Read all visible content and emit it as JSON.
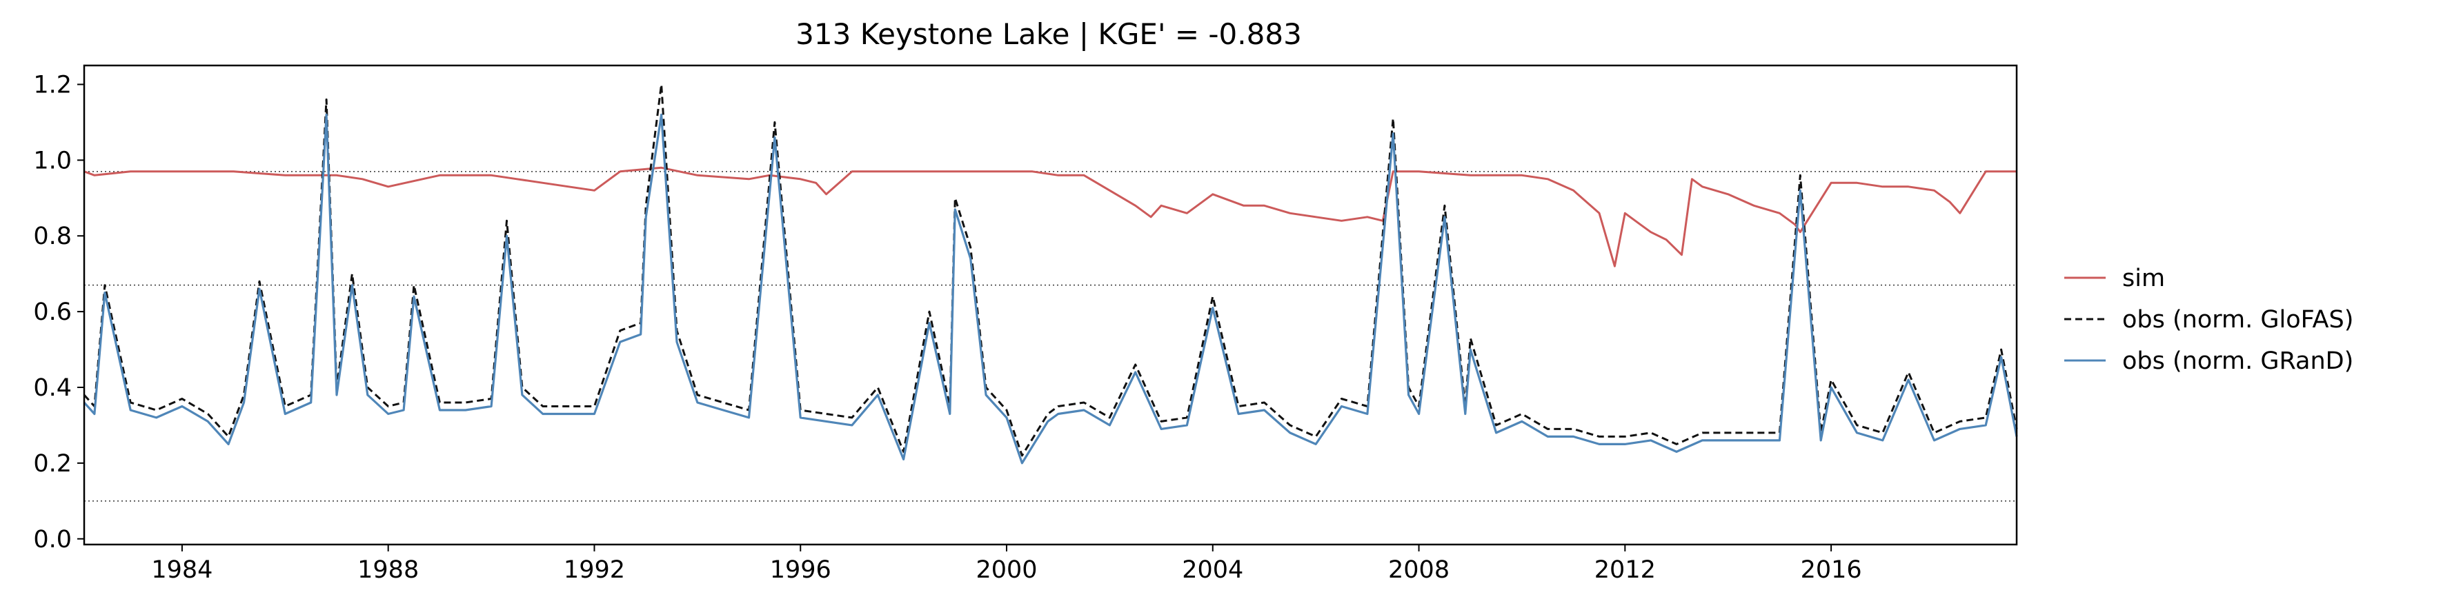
{
  "chart_data": {
    "type": "line",
    "title": "313  Keystone Lake | KGE' = -0.883",
    "xlabel": "",
    "ylabel": "",
    "xlim": [
      1982.1,
      2019.6
    ],
    "ylim": [
      -0.015,
      1.25
    ],
    "x_ticks": [
      1984,
      1988,
      1992,
      1996,
      2000,
      2004,
      2008,
      2012,
      2016
    ],
    "y_ticks": [
      0.0,
      0.2,
      0.4,
      0.6,
      0.8,
      1.0,
      1.2
    ],
    "y_tick_labels": [
      "0.0",
      "0.2",
      "0.4",
      "0.6",
      "0.8",
      "1.0",
      "1.2"
    ],
    "reference_lines": [
      0.97,
      0.67,
      0.1
    ],
    "legend_position": "outside-right",
    "grid": false,
    "series": [
      {
        "name": "sim",
        "color": "#cc5a5a",
        "style": "solid",
        "x": [
          1982.1,
          1982.3,
          1983.0,
          1984.0,
          1985.0,
          1986.0,
          1987.0,
          1987.5,
          1988.0,
          1989.0,
          1990.0,
          1990.5,
          1991.0,
          1991.5,
          1992.0,
          1992.5,
          1993.3,
          1994.0,
          1995.0,
          1995.4,
          1996.0,
          1996.3,
          1996.5,
          1997.0,
          1998.0,
          1999.0,
          2000.0,
          2000.5,
          2001.0,
          2001.5,
          2002.0,
          2002.5,
          2002.8,
          2003.0,
          2003.5,
          2004.0,
          2004.6,
          2005.0,
          2005.5,
          2006.0,
          2006.5,
          2007.0,
          2007.3,
          2007.5,
          2008.0,
          2009.0,
          2010.0,
          2010.5,
          2011.0,
          2011.5,
          2011.8,
          2012.0,
          2012.3,
          2012.5,
          2012.8,
          2013.1,
          2013.3,
          2013.5,
          2014.0,
          2014.5,
          2015.0,
          2015.3,
          2015.4,
          2016.0,
          2016.5,
          2017.0,
          2017.5,
          2018.0,
          2018.3,
          2018.5,
          2019.0,
          2019.6
        ],
        "y": [
          0.97,
          0.96,
          0.97,
          0.97,
          0.97,
          0.96,
          0.96,
          0.95,
          0.93,
          0.96,
          0.96,
          0.95,
          0.94,
          0.93,
          0.92,
          0.97,
          0.98,
          0.96,
          0.95,
          0.96,
          0.95,
          0.94,
          0.91,
          0.97,
          0.97,
          0.97,
          0.97,
          0.97,
          0.96,
          0.96,
          0.92,
          0.88,
          0.85,
          0.88,
          0.86,
          0.91,
          0.88,
          0.88,
          0.86,
          0.85,
          0.84,
          0.85,
          0.84,
          0.97,
          0.97,
          0.96,
          0.96,
          0.95,
          0.92,
          0.86,
          0.72,
          0.86,
          0.83,
          0.81,
          0.79,
          0.75,
          0.95,
          0.93,
          0.91,
          0.88,
          0.86,
          0.83,
          0.81,
          0.94,
          0.94,
          0.93,
          0.93,
          0.92,
          0.89,
          0.86,
          0.97,
          0.97
        ]
      },
      {
        "name": "obs (norm. GloFAS)",
        "color": "#111111",
        "style": "dashed",
        "x": [
          1982.1,
          1982.3,
          1982.5,
          1983.0,
          1983.5,
          1984.0,
          1984.5,
          1984.9,
          1985.2,
          1985.5,
          1986.0,
          1986.5,
          1986.8,
          1987.0,
          1987.3,
          1987.6,
          1988.0,
          1988.3,
          1988.5,
          1989.0,
          1989.5,
          1990.0,
          1990.3,
          1990.6,
          1991.0,
          1991.5,
          1992.0,
          1992.5,
          1992.9,
          1993.0,
          1993.3,
          1993.6,
          1994.0,
          1994.5,
          1995.0,
          1995.5,
          1996.0,
          1996.5,
          1997.0,
          1997.5,
          1998.0,
          1998.5,
          1998.9,
          1999.0,
          1999.3,
          1999.6,
          2000.0,
          2000.3,
          2000.8,
          2001.0,
          2001.5,
          2002.0,
          2002.5,
          2003.0,
          2003.5,
          2004.0,
          2004.5,
          2005.0,
          2005.5,
          2006.0,
          2006.5,
          2007.0,
          2007.5,
          2007.8,
          2008.0,
          2008.5,
          2008.9,
          2009.0,
          2009.5,
          2010.0,
          2010.5,
          2011.0,
          2011.5,
          2012.0,
          2012.5,
          2013.0,
          2013.5,
          2014.0,
          2014.5,
          2015.0,
          2015.4,
          2015.8,
          2016.0,
          2016.5,
          2017.0,
          2017.5,
          2018.0,
          2018.5,
          2019.0,
          2019.3,
          2019.6
        ],
        "y": [
          0.38,
          0.35,
          0.67,
          0.36,
          0.34,
          0.37,
          0.33,
          0.27,
          0.38,
          0.68,
          0.35,
          0.38,
          1.16,
          0.4,
          0.7,
          0.4,
          0.35,
          0.36,
          0.67,
          0.36,
          0.36,
          0.37,
          0.84,
          0.4,
          0.35,
          0.35,
          0.35,
          0.55,
          0.57,
          0.88,
          1.2,
          0.55,
          0.38,
          0.36,
          0.34,
          1.1,
          0.34,
          0.33,
          0.32,
          0.4,
          0.23,
          0.6,
          0.35,
          0.9,
          0.77,
          0.4,
          0.34,
          0.22,
          0.33,
          0.35,
          0.36,
          0.32,
          0.46,
          0.31,
          0.32,
          0.64,
          0.35,
          0.36,
          0.3,
          0.27,
          0.37,
          0.35,
          1.11,
          0.4,
          0.35,
          0.88,
          0.35,
          0.53,
          0.3,
          0.33,
          0.29,
          0.29,
          0.27,
          0.27,
          0.28,
          0.25,
          0.28,
          0.28,
          0.28,
          0.28,
          0.96,
          0.28,
          0.42,
          0.3,
          0.28,
          0.44,
          0.28,
          0.31,
          0.32,
          0.5,
          0.29
        ]
      },
      {
        "name": "obs (norm. GRanD)",
        "color": "#4f86b8",
        "style": "solid",
        "x": [
          1982.1,
          1982.3,
          1982.5,
          1983.0,
          1983.5,
          1984.0,
          1984.5,
          1984.9,
          1985.2,
          1985.5,
          1986.0,
          1986.5,
          1986.8,
          1987.0,
          1987.3,
          1987.6,
          1988.0,
          1988.3,
          1988.5,
          1989.0,
          1989.5,
          1990.0,
          1990.3,
          1990.6,
          1991.0,
          1991.5,
          1992.0,
          1992.5,
          1992.9,
          1993.0,
          1993.3,
          1993.6,
          1994.0,
          1994.5,
          1995.0,
          1995.5,
          1996.0,
          1996.5,
          1997.0,
          1997.5,
          1998.0,
          1998.5,
          1998.9,
          1999.0,
          1999.3,
          1999.6,
          2000.0,
          2000.3,
          2000.8,
          2001.0,
          2001.5,
          2002.0,
          2002.5,
          2003.0,
          2003.5,
          2004.0,
          2004.5,
          2005.0,
          2005.5,
          2006.0,
          2006.5,
          2007.0,
          2007.5,
          2007.8,
          2008.0,
          2008.5,
          2008.9,
          2009.0,
          2009.5,
          2010.0,
          2010.5,
          2011.0,
          2011.5,
          2012.0,
          2012.5,
          2013.0,
          2013.5,
          2014.0,
          2014.5,
          2015.0,
          2015.4,
          2015.8,
          2016.0,
          2016.5,
          2017.0,
          2017.5,
          2018.0,
          2018.5,
          2019.0,
          2019.3,
          2019.6
        ],
        "y": [
          0.36,
          0.33,
          0.65,
          0.34,
          0.32,
          0.35,
          0.31,
          0.25,
          0.36,
          0.66,
          0.33,
          0.36,
          1.12,
          0.38,
          0.67,
          0.38,
          0.33,
          0.34,
          0.64,
          0.34,
          0.34,
          0.35,
          0.8,
          0.38,
          0.33,
          0.33,
          0.33,
          0.52,
          0.54,
          0.85,
          1.12,
          0.52,
          0.36,
          0.34,
          0.32,
          1.06,
          0.32,
          0.31,
          0.3,
          0.38,
          0.21,
          0.57,
          0.33,
          0.87,
          0.74,
          0.38,
          0.32,
          0.2,
          0.31,
          0.33,
          0.34,
          0.3,
          0.44,
          0.29,
          0.3,
          0.61,
          0.33,
          0.34,
          0.28,
          0.25,
          0.35,
          0.33,
          1.07,
          0.38,
          0.33,
          0.85,
          0.33,
          0.5,
          0.28,
          0.31,
          0.27,
          0.27,
          0.25,
          0.25,
          0.26,
          0.23,
          0.26,
          0.26,
          0.26,
          0.26,
          0.92,
          0.26,
          0.4,
          0.28,
          0.26,
          0.42,
          0.26,
          0.29,
          0.3,
          0.48,
          0.27
        ]
      }
    ]
  }
}
